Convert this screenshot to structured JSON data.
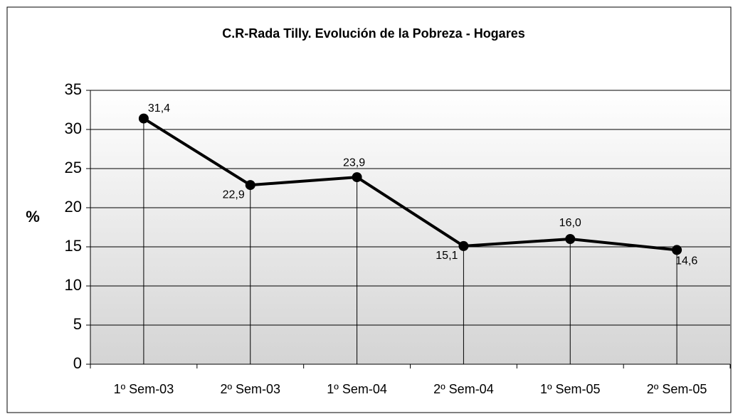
{
  "chart_data": {
    "type": "line",
    "title": "C.R-Rada Tilly. Evolución de la Pobreza - Hogares",
    "y_label": "%",
    "categories": [
      "1º Sem-03",
      "2º Sem-03",
      "1º Sem-04",
      "2º Sem-04",
      "1º Sem-05",
      "2º Sem-05"
    ],
    "values": [
      31.4,
      22.9,
      23.9,
      15.1,
      16.0,
      14.6
    ],
    "value_labels": [
      "31,4",
      "22,9",
      "23,9",
      "15,1",
      "16,0",
      "14,6"
    ],
    "color": "#000000",
    "ylim": [
      0,
      35
    ],
    "yticks": [
      0,
      5,
      10,
      15,
      20,
      25,
      30,
      35
    ],
    "grid": true
  }
}
